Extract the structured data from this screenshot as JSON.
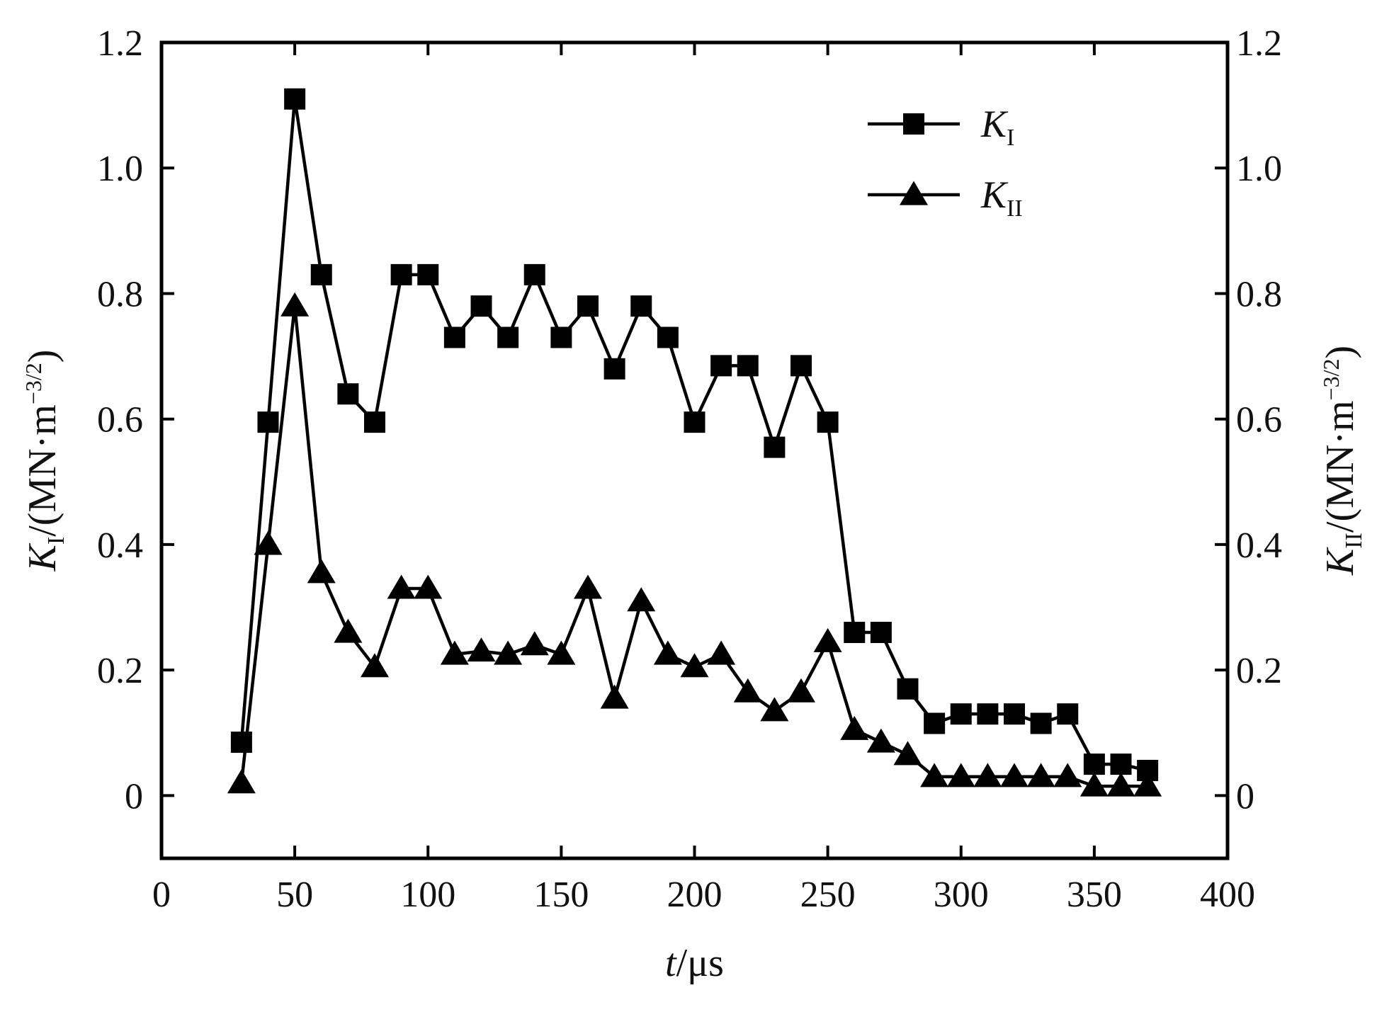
{
  "chart_data": {
    "type": "line",
    "title": "",
    "xlabel": {
      "var": "t",
      "unit": "/μs"
    },
    "ylabel_left": {
      "var": "K",
      "sub": "I",
      "unit": "/(MN·m",
      "exp": "−3/2",
      "close": ")"
    },
    "ylabel_right": {
      "var": "K",
      "sub": "II",
      "unit": "/(MN·m",
      "exp": "−3/2",
      "close": ")"
    },
    "xlim": [
      0,
      400
    ],
    "ylim": [
      -0.1,
      1.2
    ],
    "x_ticks": [
      "0",
      "50",
      "100",
      "150",
      "200",
      "250",
      "300",
      "350",
      "400"
    ],
    "x_tick_values": [
      0,
      50,
      100,
      150,
      200,
      250,
      300,
      350,
      400
    ],
    "y_ticks": [
      "0",
      "0.2",
      "0.4",
      "0.6",
      "0.8",
      "1.0",
      "1.2"
    ],
    "y_tick_values": [
      0,
      0.2,
      0.4,
      0.6,
      0.8,
      1.0,
      1.2
    ],
    "legend_position": "top-right",
    "grid": false,
    "series": [
      {
        "name": "K",
        "name_sub": "I",
        "marker": "square",
        "color": "#000000",
        "x": [
          30,
          40,
          50,
          60,
          70,
          80,
          90,
          100,
          110,
          120,
          130,
          140,
          150,
          160,
          170,
          180,
          190,
          200,
          210,
          220,
          230,
          240,
          250,
          260,
          270,
          280,
          290,
          300,
          310,
          320,
          330,
          340,
          350,
          360,
          370
        ],
        "y": [
          0.085,
          0.595,
          1.11,
          0.83,
          0.64,
          0.595,
          0.83,
          0.83,
          0.73,
          0.78,
          0.73,
          0.83,
          0.73,
          0.78,
          0.68,
          0.78,
          0.73,
          0.595,
          0.685,
          0.685,
          0.555,
          0.685,
          0.595,
          0.26,
          0.26,
          0.17,
          0.115,
          0.13,
          0.13,
          0.13,
          0.115,
          0.13,
          0.05,
          0.05,
          0.04
        ]
      },
      {
        "name": "K",
        "name_sub": "II",
        "marker": "triangle",
        "color": "#000000",
        "x": [
          30,
          40,
          50,
          60,
          70,
          80,
          90,
          100,
          110,
          120,
          130,
          140,
          150,
          160,
          170,
          180,
          190,
          200,
          210,
          220,
          230,
          240,
          250,
          260,
          270,
          280,
          290,
          300,
          310,
          320,
          330,
          340,
          350,
          360,
          370
        ],
        "y": [
          0.02,
          0.4,
          0.78,
          0.355,
          0.26,
          0.205,
          0.33,
          0.33,
          0.225,
          0.23,
          0.225,
          0.24,
          0.225,
          0.33,
          0.155,
          0.31,
          0.225,
          0.205,
          0.225,
          0.165,
          0.135,
          0.165,
          0.245,
          0.105,
          0.085,
          0.065,
          0.03,
          0.03,
          0.03,
          0.03,
          0.03,
          0.03,
          0.015,
          0.015,
          0.015
        ]
      }
    ]
  }
}
